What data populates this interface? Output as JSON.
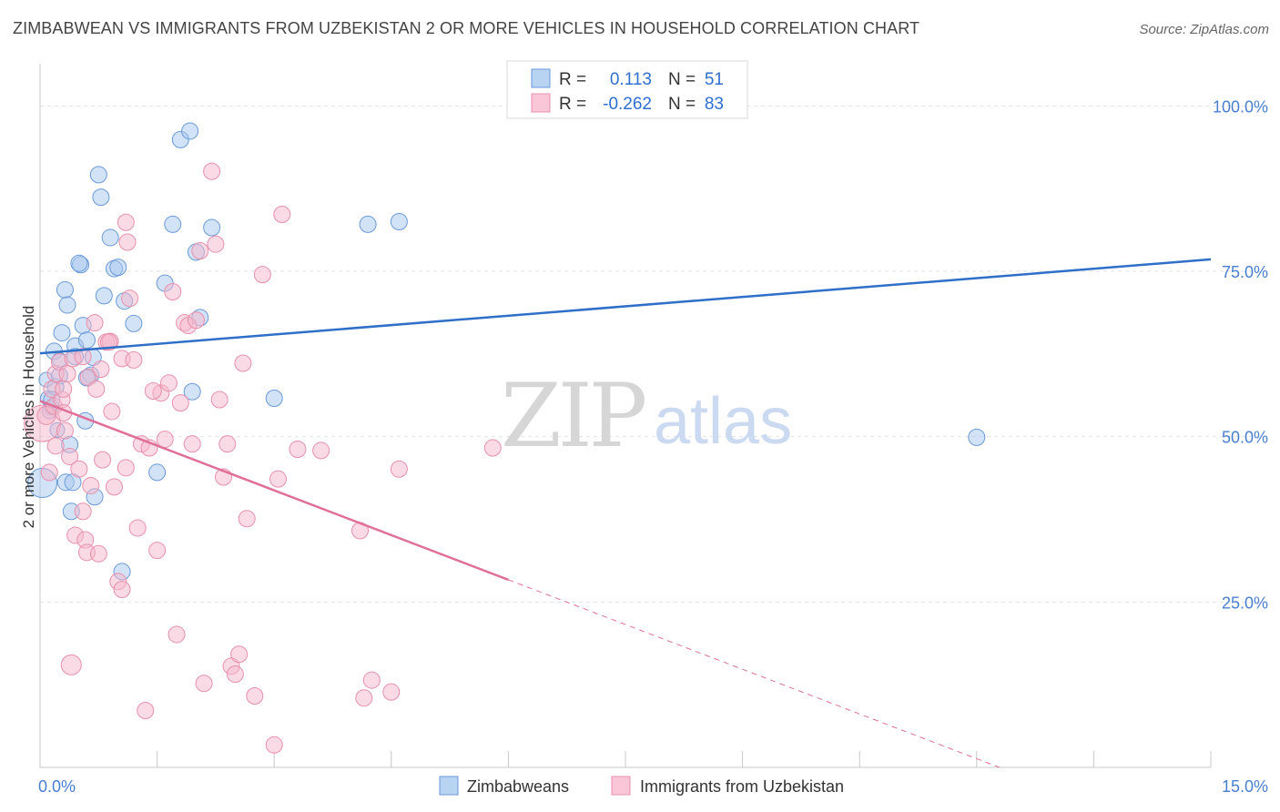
{
  "title": "ZIMBABWEAN VS IMMIGRANTS FROM UZBEKISTAN 2 OR MORE VEHICLES IN HOUSEHOLD CORRELATION CHART",
  "source": "Source: ZipAtlas.com",
  "watermark": {
    "part1": "ZIP",
    "part2": "atlas"
  },
  "legend_top": {
    "rows": [
      {
        "r_label": "R =",
        "r_value": "0.113",
        "n_label": "N =",
        "n_value": "51",
        "color": "#a8c8f0",
        "stroke": "#6a9ad8"
      },
      {
        "r_label": "R =",
        "r_value": "-0.262",
        "n_label": "N =",
        "n_value": "83",
        "color": "#f6b8cc",
        "stroke": "#e890ac"
      }
    ]
  },
  "legend_bottom": [
    {
      "label": "Zimbabweans",
      "color": "#a8c8f0",
      "stroke": "#6a9ad8"
    },
    {
      "label": "Immigrants from Uzbekistan",
      "color": "#f6b8cc",
      "stroke": "#e890ac"
    }
  ],
  "chart_data": {
    "type": "scatter",
    "title": "ZIMBABWEAN VS IMMIGRANTS FROM UZBEKISTAN 2 OR MORE VEHICLES IN HOUSEHOLD CORRELATION CHART",
    "xlabel": "",
    "ylabel": "2 or more Vehicles in Household",
    "xlim": [
      0,
      15
    ],
    "ylim": [
      0,
      105
    ],
    "x_tick_labels": [
      {
        "value": 0,
        "label": "0.0%"
      },
      {
        "value": 15,
        "label": "15.0%"
      }
    ],
    "y_tick_labels": [
      {
        "value": 100,
        "label": "100.0%"
      },
      {
        "value": 75,
        "label": "75.0%"
      },
      {
        "value": 50,
        "label": "50.0%"
      },
      {
        "value": 25,
        "label": "25.0%"
      }
    ],
    "x_minor_ticks": [
      0,
      1.5,
      3,
      4.5,
      6,
      7.5,
      9,
      10.5,
      12,
      13.5,
      15
    ],
    "series": [
      {
        "name": "Zimbabweans",
        "color": "#a8c8f0",
        "stroke": "#6a9ad8",
        "trend": {
          "x0": 0,
          "y0": 62.6,
          "x1": 15,
          "y1": 76.8,
          "color": "#2f6fc8",
          "dashed_from": null
        },
        "points": [
          [
            0.03,
            43,
            16
          ],
          [
            0.08,
            58.6,
            8
          ],
          [
            0.1,
            55.8,
            8
          ],
          [
            0.15,
            54.4,
            8
          ],
          [
            0.12,
            53.8,
            8
          ],
          [
            0.18,
            62.9,
            9
          ],
          [
            0.2,
            57.5,
            9
          ],
          [
            0.22,
            51,
            8
          ],
          [
            0.25,
            61.6,
            8
          ],
          [
            0.28,
            65.7,
            9
          ],
          [
            0.32,
            72.2,
            9
          ],
          [
            0.35,
            69.9,
            9
          ],
          [
            0.38,
            48.8,
            9
          ],
          [
            0.33,
            43.1,
            9
          ],
          [
            0.42,
            43.1,
            9
          ],
          [
            0.4,
            38.7,
            9
          ],
          [
            0.45,
            63.7,
            9
          ],
          [
            0.52,
            76,
            9
          ],
          [
            0.55,
            66.8,
            9
          ],
          [
            0.6,
            64.6,
            9
          ],
          [
            0.65,
            59.3,
            9
          ],
          [
            0.68,
            62,
            9
          ],
          [
            0.75,
            89.6,
            9
          ],
          [
            0.78,
            86.2,
            9
          ],
          [
            0.82,
            71.3,
            9
          ],
          [
            0.9,
            80.1,
            9
          ],
          [
            0.95,
            75.4,
            9
          ],
          [
            0.7,
            40.9,
            9
          ],
          [
            1.08,
            70.5,
            9
          ],
          [
            1.05,
            29.6,
            9
          ],
          [
            1.2,
            67.1,
            9
          ],
          [
            1.5,
            44.6,
            9
          ],
          [
            1.6,
            73.2,
            9
          ],
          [
            1.7,
            82.1,
            9
          ],
          [
            1.8,
            94.9,
            9
          ],
          [
            1.92,
            96.2,
            9
          ],
          [
            1.95,
            56.8,
            9
          ],
          [
            2.0,
            77.9,
            9
          ],
          [
            2.05,
            68,
            9
          ],
          [
            2.2,
            81.6,
            9
          ],
          [
            3.0,
            55.8,
            9
          ],
          [
            4.2,
            82.1,
            9
          ],
          [
            4.6,
            82.5,
            9
          ],
          [
            12.0,
            49.9,
            9
          ],
          [
            0.58,
            52.4,
            9
          ],
          [
            0.5,
            76.2,
            9
          ],
          [
            1.0,
            75.6,
            9
          ],
          [
            0.6,
            58.9,
            9
          ],
          [
            0.15,
            55.6,
            9
          ],
          [
            0.25,
            59.2,
            9
          ],
          [
            0.45,
            62.1,
            9
          ]
        ]
      },
      {
        "name": "Immigrants from Uzbekistan",
        "color": "#f6b8cc",
        "stroke": "#e890ac",
        "trend": {
          "x0": 0,
          "y0": 55.4,
          "x1": 15,
          "y1": -12.2,
          "color": "#e07098",
          "dashed_from": 6.0
        },
        "points": [
          [
            0.03,
            52,
            20
          ],
          [
            0.08,
            53.2,
            10
          ],
          [
            0.12,
            44.6,
            9
          ],
          [
            0.15,
            57.2,
            9
          ],
          [
            0.18,
            54.6,
            9
          ],
          [
            0.2,
            59.5,
            9
          ],
          [
            0.25,
            61.3,
            9
          ],
          [
            0.28,
            55.6,
            9
          ],
          [
            0.3,
            53.6,
            9
          ],
          [
            0.32,
            50.9,
            9
          ],
          [
            0.35,
            59.5,
            9
          ],
          [
            0.38,
            47,
            9
          ],
          [
            0.42,
            61.8,
            9
          ],
          [
            0.45,
            35.1,
            9
          ],
          [
            0.5,
            45.1,
            9
          ],
          [
            0.55,
            38.7,
            9
          ],
          [
            0.58,
            34.4,
            9
          ],
          [
            0.6,
            32.5,
            9
          ],
          [
            0.62,
            59,
            9
          ],
          [
            0.7,
            67.2,
            9
          ],
          [
            0.72,
            57.2,
            9
          ],
          [
            0.75,
            32.3,
            9
          ],
          [
            0.8,
            46.5,
            9
          ],
          [
            0.85,
            64.3,
            9
          ],
          [
            0.9,
            64.4,
            9
          ],
          [
            0.92,
            53.8,
            9
          ],
          [
            0.95,
            42.4,
            9
          ],
          [
            1.0,
            28.1,
            9
          ],
          [
            1.05,
            61.8,
            9
          ],
          [
            1.1,
            45.3,
            9
          ],
          [
            1.12,
            79.4,
            9
          ],
          [
            1.15,
            70.9,
            9
          ],
          [
            1.2,
            61.6,
            9
          ],
          [
            1.25,
            36.2,
            9
          ],
          [
            1.3,
            48.9,
            9
          ],
          [
            1.35,
            8.6,
            9
          ],
          [
            1.4,
            48.3,
            9
          ],
          [
            1.5,
            32.8,
            9
          ],
          [
            1.55,
            56.6,
            9
          ],
          [
            1.6,
            49.6,
            9
          ],
          [
            1.65,
            58.1,
            9
          ],
          [
            1.7,
            71.9,
            9
          ],
          [
            1.75,
            20.1,
            9
          ],
          [
            1.8,
            55.1,
            9
          ],
          [
            1.85,
            67.2,
            9
          ],
          [
            1.9,
            66.8,
            9
          ],
          [
            1.95,
            48.9,
            9
          ],
          [
            2.0,
            67.6,
            9
          ],
          [
            2.1,
            12.7,
            9
          ],
          [
            2.2,
            90.1,
            9
          ],
          [
            2.25,
            79.1,
            9
          ],
          [
            2.3,
            55.6,
            9
          ],
          [
            2.35,
            43.9,
            9
          ],
          [
            2.4,
            48.9,
            9
          ],
          [
            2.45,
            15.3,
            9
          ],
          [
            2.5,
            14.1,
            9
          ],
          [
            2.55,
            17.1,
            9
          ],
          [
            2.6,
            61.1,
            9
          ],
          [
            2.65,
            37.6,
            9
          ],
          [
            2.75,
            10.8,
            9
          ],
          [
            2.85,
            74.5,
            9
          ],
          [
            3.0,
            3.4,
            9
          ],
          [
            3.05,
            43.6,
            9
          ],
          [
            3.1,
            83.6,
            9
          ],
          [
            3.3,
            48.1,
            9
          ],
          [
            3.6,
            47.9,
            9
          ],
          [
            4.1,
            35.8,
            9
          ],
          [
            4.15,
            10.5,
            9
          ],
          [
            4.25,
            13.2,
            9
          ],
          [
            4.5,
            11.4,
            9
          ],
          [
            4.6,
            45.1,
            9
          ],
          [
            5.8,
            48.3,
            9
          ],
          [
            0.4,
            15.5,
            11
          ],
          [
            1.05,
            26.9,
            9
          ],
          [
            1.1,
            82.4,
            9
          ],
          [
            0.65,
            42.6,
            9
          ],
          [
            0.78,
            60.2,
            9
          ],
          [
            0.3,
            57.2,
            9
          ],
          [
            0.2,
            48.6,
            9
          ],
          [
            0.55,
            62.1,
            9
          ],
          [
            1.45,
            56.9,
            9
          ],
          [
            2.05,
            78.1,
            9
          ],
          [
            0.88,
            64.3,
            9
          ]
        ]
      }
    ]
  }
}
